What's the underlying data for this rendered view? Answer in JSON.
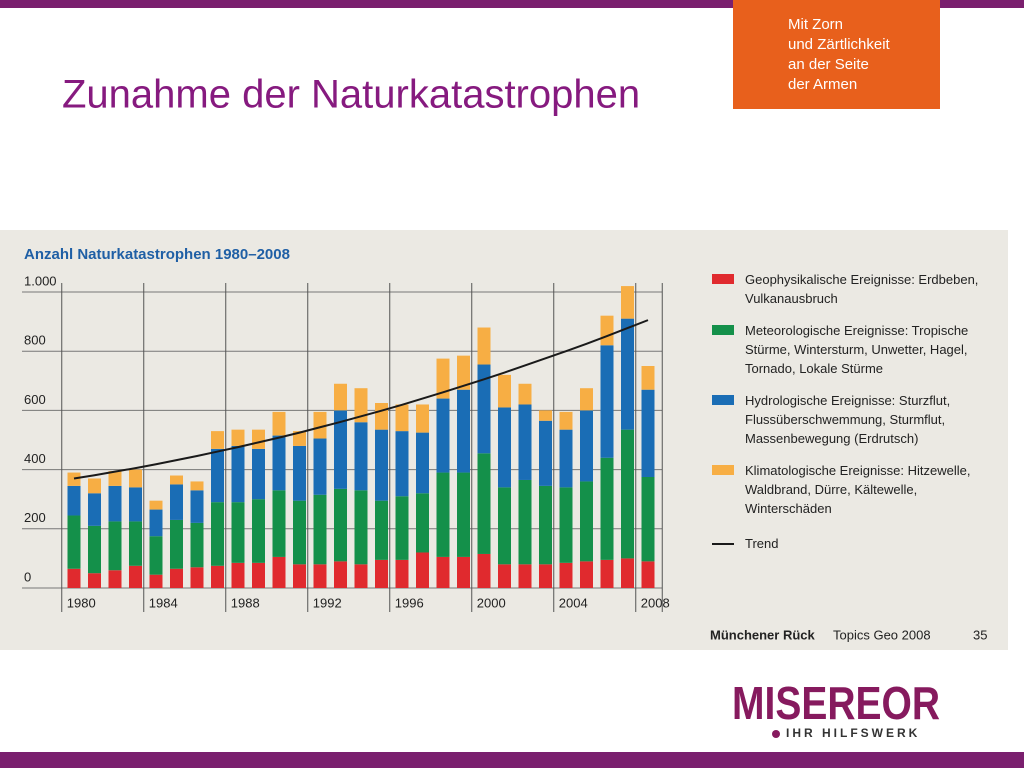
{
  "slide_title": "Zunahme der Naturkatastrophen",
  "badge_lines": [
    "Mit Zorn",
    "und Zärtlichkeit",
    "an der Seite",
    "der Armen"
  ],
  "logo": {
    "name": "MISEREOR",
    "tagline": "IHR HILFSWERK"
  },
  "source": {
    "publisher": "Münchener Rück",
    "publication": "Topics Geo 2008",
    "page": "35"
  },
  "chart_data": {
    "type": "stacked_bar",
    "title": "Anzahl Naturkatastrophen 1980–2008",
    "categories": [
      "1980",
      null,
      null,
      null,
      "1984",
      null,
      null,
      null,
      "1988",
      null,
      null,
      null,
      "1992",
      null,
      null,
      null,
      "1996",
      null,
      null,
      null,
      "2000",
      null,
      null,
      null,
      "2004",
      null,
      null,
      null,
      "2008"
    ],
    "series": [
      {
        "name": "Geophysikalische Ereignisse: Erdbeben, Vulkanausbruch",
        "color": "#e02a2e",
        "values": [
          65,
          50,
          60,
          75,
          45,
          65,
          70,
          75,
          85,
          85,
          105,
          80,
          80,
          90,
          80,
          95,
          95,
          120,
          105,
          105,
          115,
          80,
          80,
          80,
          85,
          90,
          95,
          100,
          90
        ]
      },
      {
        "name": "Meteorologische Ereignisse: Tropische Stürme, Wintersturm, Unwetter, Hagel, Tornado, Lokale Stürme",
        "color": "#14904a",
        "values": [
          180,
          160,
          165,
          150,
          130,
          165,
          150,
          215,
          205,
          215,
          225,
          215,
          235,
          245,
          250,
          200,
          215,
          200,
          285,
          285,
          340,
          260,
          285,
          265,
          255,
          270,
          345,
          435,
          285
        ]
      },
      {
        "name": "Hydrologische Ereignisse: Sturzflut, Flussüberschwemmung, Sturmflut, Massenbewegung (Erdrutsch)",
        "color": "#1a6db5",
        "values": [
          100,
          110,
          120,
          115,
          90,
          120,
          110,
          180,
          190,
          170,
          185,
          185,
          190,
          265,
          230,
          240,
          220,
          205,
          250,
          280,
          300,
          270,
          255,
          220,
          195,
          240,
          380,
          375,
          295
        ]
      },
      {
        "name": "Klimatologische Ereignisse: Hitzewelle, Waldbrand, Dürre, Kältewelle, Winterschäden",
        "color": "#f7ae44",
        "values": [
          45,
          50,
          50,
          60,
          30,
          30,
          30,
          60,
          55,
          65,
          80,
          50,
          90,
          90,
          115,
          90,
          90,
          95,
          135,
          115,
          125,
          110,
          70,
          35,
          60,
          75,
          100,
          110,
          80
        ]
      },
      {
        "name": "Trend",
        "type": "line",
        "color": "#1a1a1a",
        "values": [
          370,
          381,
          393,
          405,
          418,
          432,
          446,
          461,
          476,
          492,
          508,
          525,
          543,
          561,
          580,
          599,
          619,
          640,
          661,
          683,
          705,
          728,
          752,
          776,
          800,
          825,
          851,
          878,
          905
        ]
      }
    ],
    "ylim": [
      0,
      1000
    ],
    "yticks": [
      0,
      200,
      400,
      600,
      800,
      {
        "value": 1000,
        "label": "1.000"
      }
    ],
    "grid": true
  }
}
